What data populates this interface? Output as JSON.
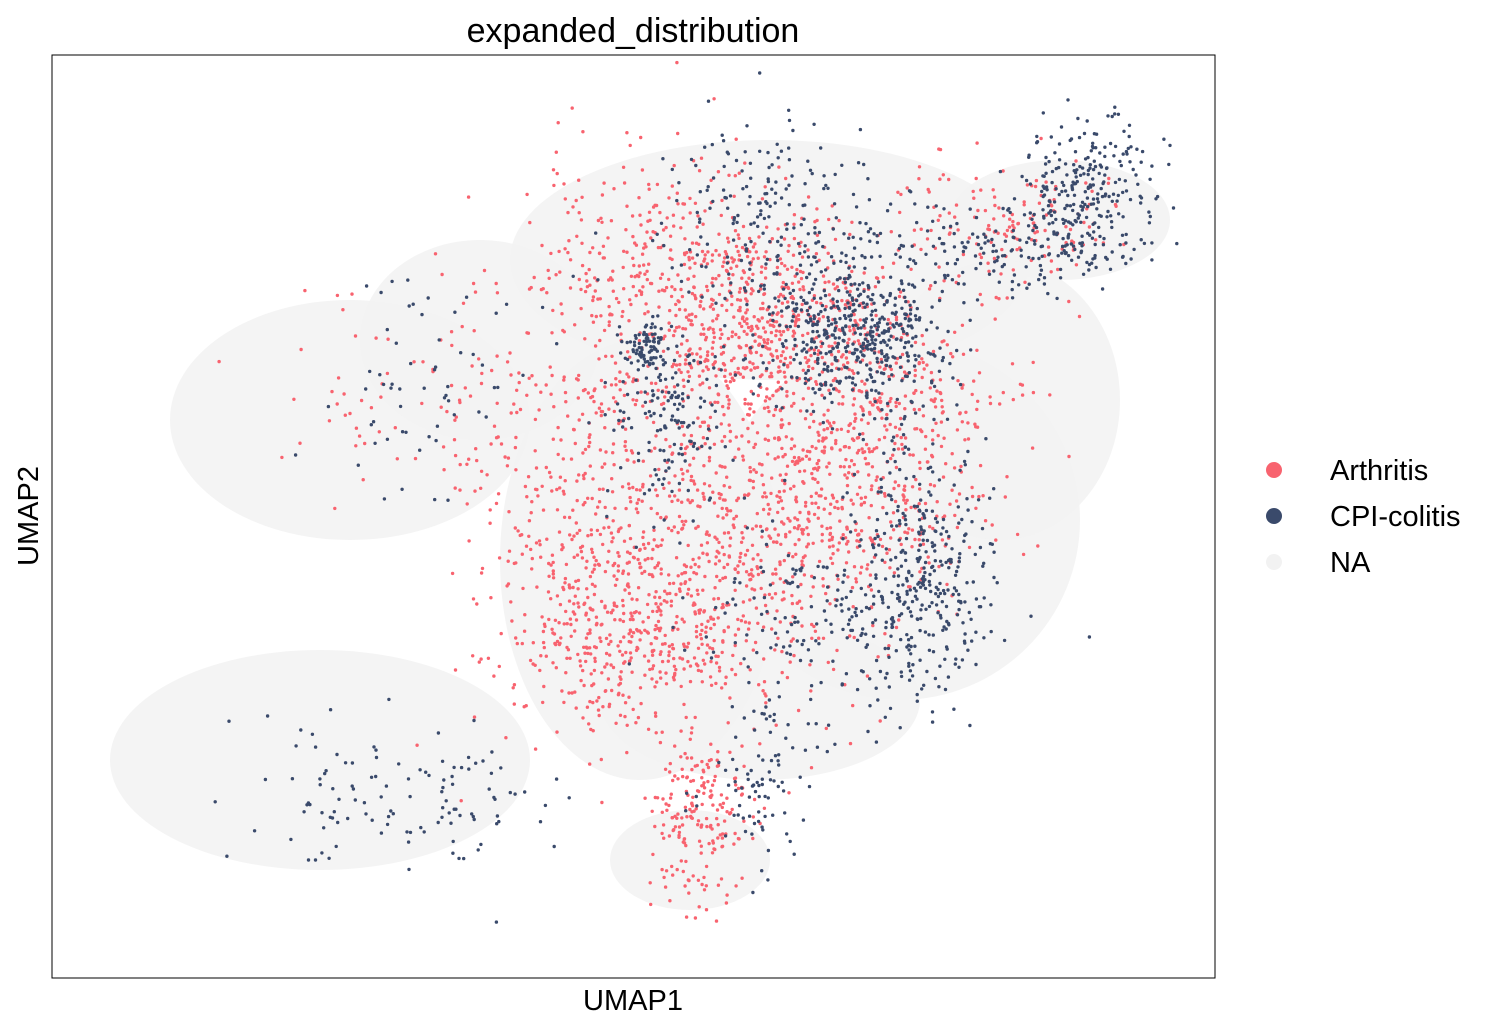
{
  "chart_data": {
    "type": "scatter",
    "title": "expanded_distribution",
    "xlabel": "UMAP1",
    "ylabel": "UMAP2",
    "x_ticks": [],
    "y_ticks": [],
    "grid": false,
    "legend_position": "right",
    "legend": [
      {
        "name": "Arthritis",
        "color": "#f8636f"
      },
      {
        "name": "CPI-colitis",
        "color": "#3a4a6b"
      },
      {
        "name": "NA",
        "color": "#f2f2f2"
      }
    ]
  }
}
